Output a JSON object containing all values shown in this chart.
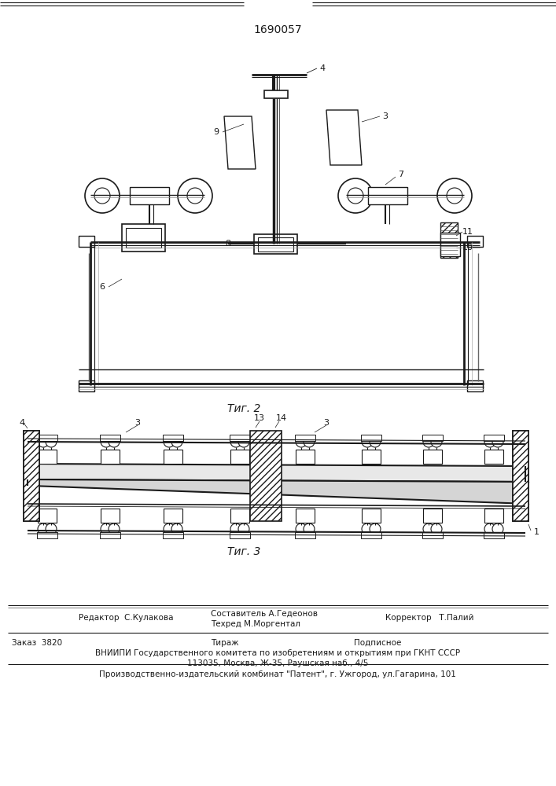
{
  "patent_number": "1690057",
  "fig2_label": "Τиг. 2",
  "fig3_label": "Τиг. 3",
  "footer_line1_left": "Редактор  С.Кулакова",
  "footer_line1_mid1": "Составитель А.Гедеонов",
  "footer_line1_mid2": "Техред М.Моргентал",
  "footer_line1_right": "Корректор   Т.Палий",
  "footer_line2_left": "Заказ  3820",
  "footer_line2_mid": "Тираж",
  "footer_line2_right": "Подписное",
  "footer_line3": "ВНИИПИ Государственного комитета по изобретениям и открытиям при ГКНТ СССР",
  "footer_line4": "113035, Москва, Ж-35, Раушская наб., 4/5",
  "footer_line5": "Производственно-издательский комбинат \"Патент\", г. Ужгород, ул.Гагарина, 101",
  "bg_color": "#ffffff",
  "text_color": "#1a1a1a",
  "line_color": "#1a1a1a"
}
